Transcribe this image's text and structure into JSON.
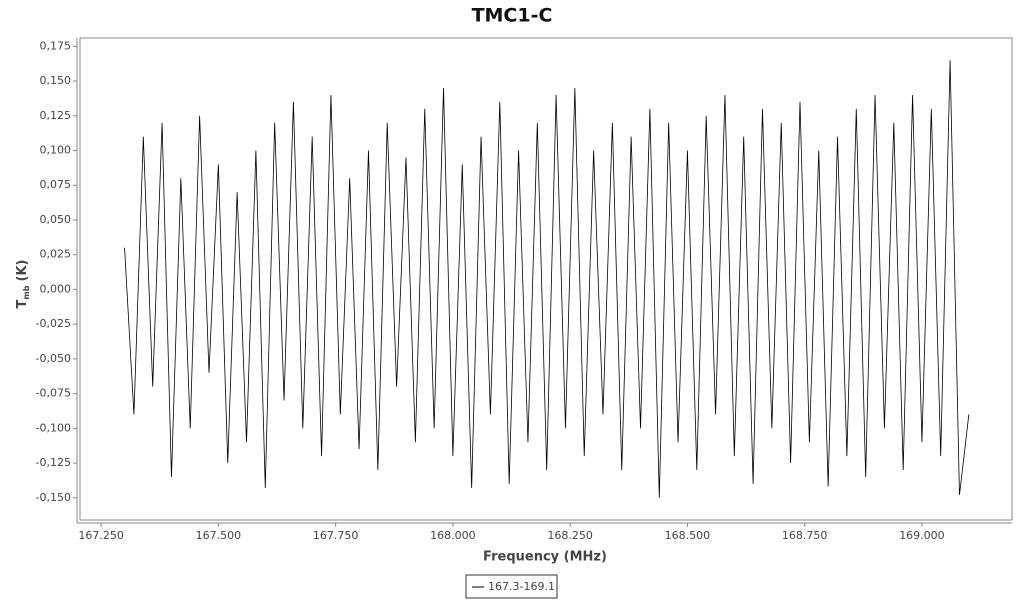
{
  "chart_data": {
    "type": "line",
    "title": "TMC1-C",
    "x_label": "Frequency (MHz)",
    "y_label": {
      "symbol": "T",
      "subscript": "mb",
      "unit": "(K)"
    },
    "grid": false,
    "legend": "bottom",
    "xlim": [
      167.205,
      169.192
    ],
    "ylim": [
      -0.166,
      0.181
    ],
    "xticks": [
      {
        "value": 167.25,
        "label": "167.250"
      },
      {
        "value": 167.5,
        "label": "167.500"
      },
      {
        "value": 167.75,
        "label": "167.750"
      },
      {
        "value": 168,
        "label": "168.000"
      },
      {
        "value": 168.25,
        "label": "168.250"
      },
      {
        "value": 168.5,
        "label": "168.500"
      },
      {
        "value": 168.75,
        "label": "168.750"
      },
      {
        "value": 169,
        "label": "169.000"
      }
    ],
    "yticks": [
      {
        "value": 0.175,
        "label": "0,175"
      },
      {
        "value": 0.15,
        "label": "0,150"
      },
      {
        "value": 0.125,
        "label": "0,125"
      },
      {
        "value": 0.1,
        "label": "0,100"
      },
      {
        "value": 0.075,
        "label": "0,075"
      },
      {
        "value": 0.05,
        "label": "0,050"
      },
      {
        "value": 0.025,
        "label": "0,025"
      },
      {
        "value": 0,
        "label": "0,000"
      },
      {
        "value": -0.025,
        "label": "-0,025"
      },
      {
        "value": -0.05,
        "label": "-0,050"
      },
      {
        "value": -0.075,
        "label": "-0,075"
      },
      {
        "value": -0.1,
        "label": "-0,100"
      },
      {
        "value": -0.125,
        "label": "-0,125"
      },
      {
        "value": -0.15,
        "label": "-0,150"
      }
    ],
    "x": [
      167.3,
      167.32,
      167.34,
      167.36,
      167.38,
      167.4,
      167.42,
      167.44,
      167.46,
      167.48,
      167.5,
      167.52,
      167.54,
      167.56,
      167.58,
      167.6,
      167.62,
      167.64,
      167.66,
      167.68,
      167.7,
      167.72,
      167.74,
      167.76,
      167.78,
      167.8,
      167.82,
      167.84,
      167.86,
      167.88,
      167.9,
      167.92,
      167.94,
      167.96,
      167.98,
      168.0,
      168.02,
      168.04,
      168.06,
      168.08,
      168.1,
      168.12,
      168.14,
      168.16,
      168.18,
      168.2,
      168.22,
      168.24,
      168.26,
      168.28,
      168.3,
      168.32,
      168.34,
      168.36,
      168.38,
      168.4,
      168.42,
      168.44,
      168.46,
      168.48,
      168.5,
      168.52,
      168.54,
      168.56,
      168.58,
      168.6,
      168.62,
      168.64,
      168.66,
      168.68,
      168.7,
      168.72,
      168.74,
      168.76,
      168.78,
      168.8,
      168.82,
      168.84,
      168.86,
      168.88,
      168.9,
      168.92,
      168.94,
      168.96,
      168.98,
      169.0,
      169.02,
      169.04,
      169.06,
      169.08,
      169.1
    ],
    "series": [
      {
        "name": "167.3-169.1",
        "color": "#000000",
        "values": [
          0.03,
          -0.09,
          0.11,
          -0.07,
          0.12,
          -0.135,
          0.08,
          -0.1,
          0.125,
          -0.06,
          0.09,
          -0.125,
          0.07,
          -0.11,
          0.1,
          -0.143,
          0.12,
          -0.08,
          0.135,
          -0.1,
          0.11,
          -0.12,
          0.14,
          -0.09,
          0.08,
          -0.115,
          0.1,
          -0.13,
          0.12,
          -0.07,
          0.095,
          -0.11,
          0.13,
          -0.1,
          0.145,
          -0.12,
          0.09,
          -0.143,
          0.11,
          -0.09,
          0.135,
          -0.14,
          0.1,
          -0.11,
          0.12,
          -0.13,
          0.14,
          -0.1,
          0.145,
          -0.12,
          0.1,
          -0.09,
          0.12,
          -0.13,
          0.11,
          -0.1,
          0.13,
          -0.15,
          0.12,
          -0.11,
          0.1,
          -0.13,
          0.125,
          -0.09,
          0.14,
          -0.12,
          0.11,
          -0.14,
          0.13,
          -0.1,
          0.12,
          -0.125,
          0.135,
          -0.11,
          0.1,
          -0.142,
          0.11,
          -0.12,
          0.13,
          -0.135,
          0.14,
          -0.1,
          0.12,
          -0.13,
          0.14,
          -0.11,
          0.13,
          -0.12,
          0.165,
          -0.148,
          -0.09
        ]
      }
    ]
  }
}
